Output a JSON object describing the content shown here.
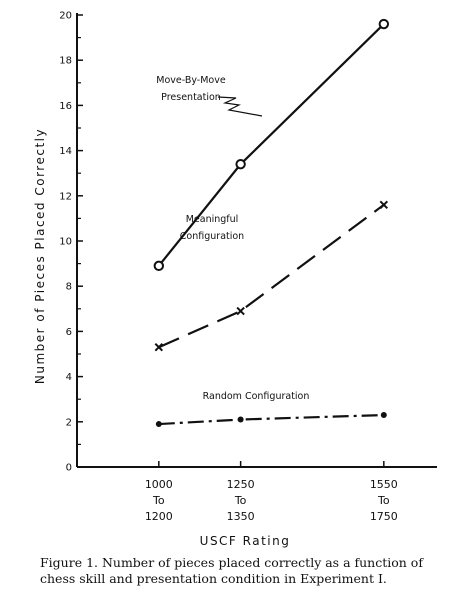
{
  "chart_data": {
    "type": "line",
    "xlabel": "USCF Rating",
    "ylabel": "Number of Pieces Placed Correctly",
    "ylim": [
      0,
      20
    ],
    "yticks": [
      0,
      2,
      4,
      6,
      8,
      10,
      12,
      14,
      16,
      18,
      20
    ],
    "categories": [
      [
        "1000",
        "To",
        "1200"
      ],
      [
        "1250",
        "To",
        "1350"
      ],
      [
        "1550",
        "To",
        "1750"
      ]
    ],
    "x": [
      1100,
      1300,
      1650
    ],
    "grid": false,
    "legend": "none",
    "series": [
      {
        "name": "Move-By-Move Presentation",
        "label_lines": [
          "Move-By-Move",
          "Presentation"
        ],
        "marker": "circle",
        "line_style": "solid",
        "values": [
          8.9,
          13.4,
          19.6
        ]
      },
      {
        "name": "Meaningful Configuration",
        "label_lines": [
          "Meaningful",
          "Configuration"
        ],
        "marker": "x",
        "line_style": "dashed",
        "values": [
          5.3,
          6.9,
          11.6
        ]
      },
      {
        "name": "Random Configuration",
        "label_lines": [
          "Random  Configuration"
        ],
        "marker": "dot",
        "line_style": "dash-dot",
        "values": [
          1.9,
          2.1,
          2.3
        ]
      }
    ]
  },
  "caption": "Figure 1. Number of pieces placed correctly as a function of chess skill and presentation condition in Experiment I.",
  "colors": {
    "ink": "#111111",
    "background": "#ffffff"
  }
}
